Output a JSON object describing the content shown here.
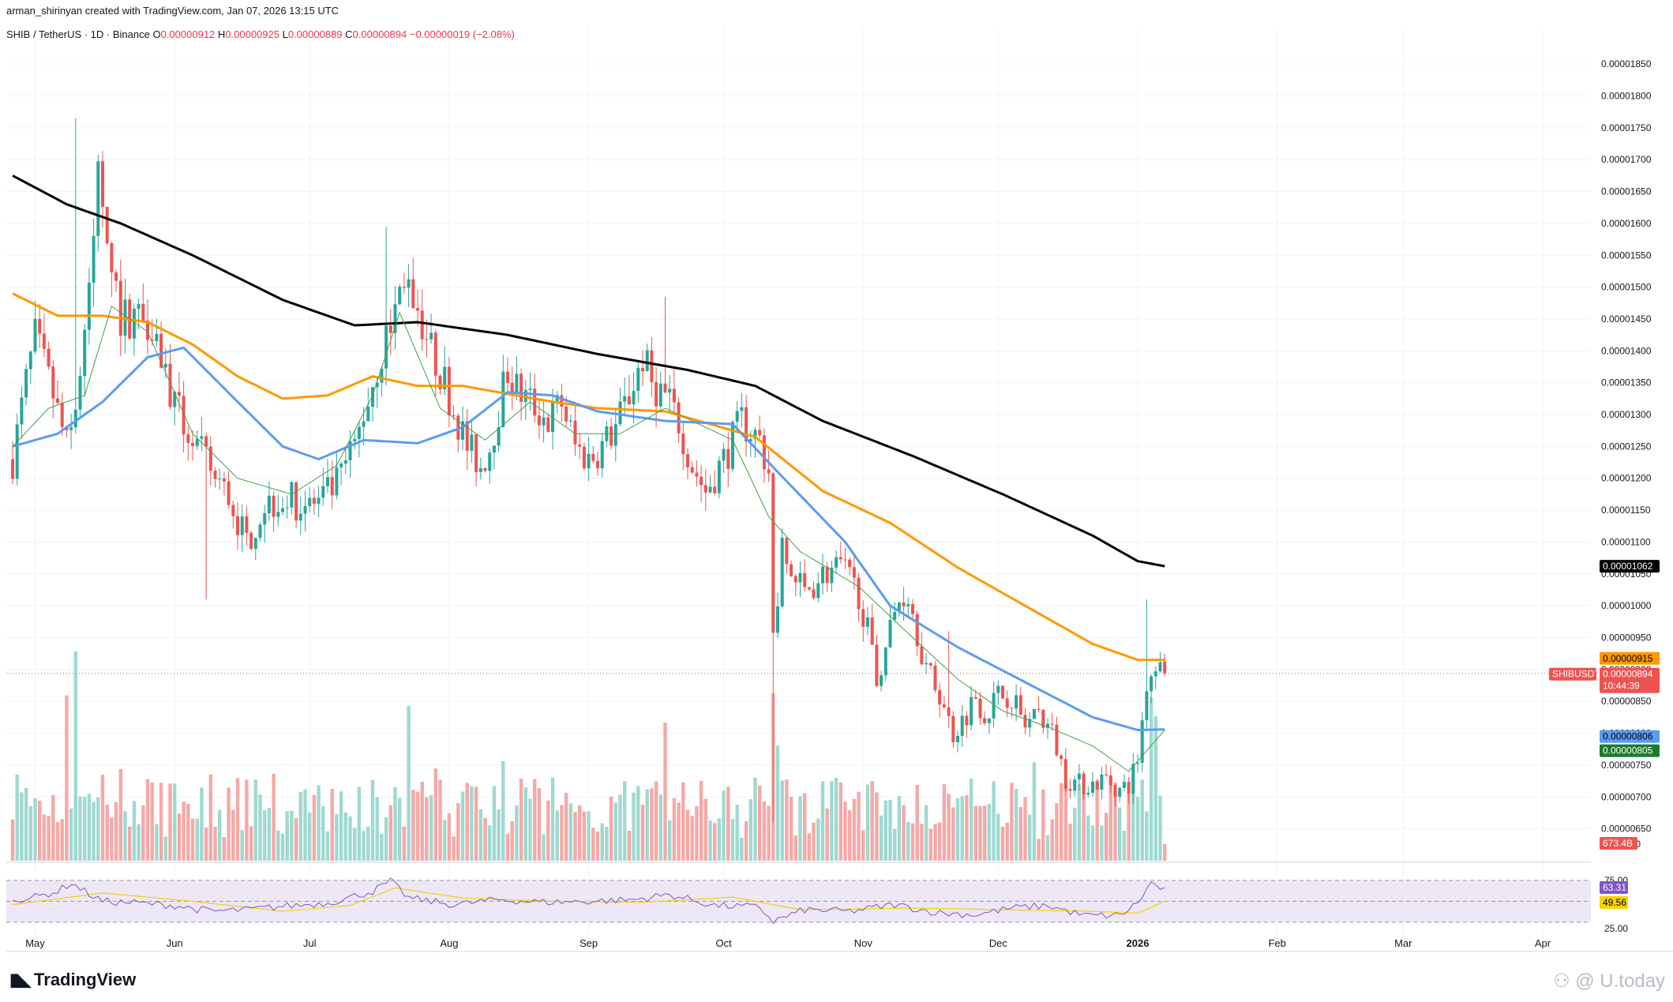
{
  "header": {
    "author_line": "arman_shirinyan created with TradingView.com, Jan 07, 2026 13:15 UTC",
    "symbol": "SHIB / TetherUS · 1D · Binance",
    "ohlc": {
      "o_label": "O",
      "o": "0.00000912",
      "h_label": "H",
      "h": "0.00000925",
      "l_label": "L",
      "l": "0.00000889",
      "c_label": "C",
      "c": "0.00000894",
      "change": "−0.00000019 (−2.08%)"
    }
  },
  "branding": {
    "logo_icon": "tradingview-logo-icon",
    "name": "TradingView",
    "watermark": "U.today"
  },
  "colors": {
    "up": "#26a69a",
    "down": "#ef5350",
    "vol_up": "#9fd9d1",
    "vol_down": "#f6a8a6",
    "ma_black": "#000000",
    "ma_orange": "#ff9800",
    "ma_blue": "#5b9cf0",
    "ma_green": "#43a047",
    "rsi": "#7e57c2",
    "rsi_ma": "#f5d300",
    "rsi_band": "#ede7f6"
  },
  "chart_data": {
    "type": "candlestick",
    "interval": "1D",
    "y_axis": {
      "min": 6e-06,
      "max": 1.87e-05,
      "ticks": [
        "0.00001850",
        "0.00001800",
        "0.00001750",
        "0.00001700",
        "0.00001650",
        "0.00001600",
        "0.00001550",
        "0.00001500",
        "0.00001450",
        "0.00001400",
        "0.00001350",
        "0.00001300",
        "0.00001250",
        "0.00001200",
        "0.00001150",
        "0.00001100",
        "0.00001050",
        "0.00001000",
        "0.00000950",
        "0.00000900",
        "0.00000850",
        "0.00000800",
        "0.00000750",
        "0.00000700",
        "0.00000650",
        "0.00000600"
      ]
    },
    "x_axis": {
      "labels": [
        {
          "label": "May",
          "bar": 5
        },
        {
          "label": "Jun",
          "bar": 36
        },
        {
          "label": "Jul",
          "bar": 66
        },
        {
          "label": "Aug",
          "bar": 97
        },
        {
          "label": "Sep",
          "bar": 128
        },
        {
          "label": "Oct",
          "bar": 158
        },
        {
          "label": "Nov",
          "bar": 189
        },
        {
          "label": "Dec",
          "bar": 219
        },
        {
          "label": "2026",
          "bar": 250
        },
        {
          "label": "Feb",
          "bar": 281
        },
        {
          "label": "Mar",
          "bar": 309
        },
        {
          "label": "Apr",
          "bar": 340
        }
      ],
      "last_bar": 256,
      "total_slots": 370
    },
    "price_path": [
      [
        0,
        12.3
      ],
      [
        3,
        13.5
      ],
      [
        5,
        14.2
      ],
      [
        9,
        13.3
      ],
      [
        12,
        12.5
      ],
      [
        15,
        13.7
      ],
      [
        17,
        14.8
      ],
      [
        19,
        16.8
      ],
      [
        21,
        16.0
      ],
      [
        24,
        14.5
      ],
      [
        28,
        14.6
      ],
      [
        31,
        14.5
      ],
      [
        36,
        13.1
      ],
      [
        40,
        12.6
      ],
      [
        45,
        12.0
      ],
      [
        48,
        11.7
      ],
      [
        52,
        11.0
      ],
      [
        56,
        11.6
      ],
      [
        60,
        11.7
      ],
      [
        64,
        11.6
      ],
      [
        68,
        11.6
      ],
      [
        72,
        11.9
      ],
      [
        76,
        12.5
      ],
      [
        80,
        13.5
      ],
      [
        84,
        14.4
      ],
      [
        87,
        15.2
      ],
      [
        90,
        14.7
      ],
      [
        93,
        14.0
      ],
      [
        95,
        13.7
      ],
      [
        98,
        13.1
      ],
      [
        101,
        12.5
      ],
      [
        104,
        12.2
      ],
      [
        106,
        12.5
      ],
      [
        108,
        13.1
      ],
      [
        110,
        13.7
      ],
      [
        112,
        13.4
      ],
      [
        115,
        13.2
      ],
      [
        119,
        12.9
      ],
      [
        122,
        13.2
      ],
      [
        125,
        12.5
      ],
      [
        128,
        12.3
      ],
      [
        131,
        12.5
      ],
      [
        134,
        12.8
      ],
      [
        137,
        13.3
      ],
      [
        140,
        13.9
      ],
      [
        142,
        13.5
      ],
      [
        145,
        13.3
      ],
      [
        148,
        12.9
      ],
      [
        151,
        12.2
      ],
      [
        154,
        11.8
      ],
      [
        158,
        12.3
      ],
      [
        162,
        12.9
      ],
      [
        166,
        12.6
      ],
      [
        168,
        12.1
      ],
      [
        169,
        9.5
      ],
      [
        171,
        10.8
      ],
      [
        173,
        10.5
      ],
      [
        176,
        10.2
      ],
      [
        180,
        10.5
      ],
      [
        184,
        10.6
      ],
      [
        188,
        10.2
      ],
      [
        190,
        9.6
      ],
      [
        192,
        8.8
      ],
      [
        194,
        9.4
      ],
      [
        197,
        10.1
      ],
      [
        199,
        10.2
      ],
      [
        201,
        9.6
      ],
      [
        203,
        9.0
      ],
      [
        206,
        8.6
      ],
      [
        209,
        8.0
      ],
      [
        211,
        8.2
      ],
      [
        214,
        8.6
      ],
      [
        216,
        8.3
      ],
      [
        219,
        8.6
      ],
      [
        222,
        8.6
      ],
      [
        225,
        8.1
      ],
      [
        228,
        8.3
      ],
      [
        231,
        8.0
      ],
      [
        234,
        7.3
      ],
      [
        237,
        7.2
      ],
      [
        240,
        7.2
      ],
      [
        243,
        7.3
      ],
      [
        246,
        7.1
      ],
      [
        248,
        7.2
      ],
      [
        250,
        7.6
      ],
      [
        252,
        8.8
      ],
      [
        254,
        9.1
      ],
      [
        256,
        8.94
      ]
    ],
    "spikes": [
      {
        "bar": 14,
        "high": 17.65
      },
      {
        "bar": 43,
        "low": 10.1
      },
      {
        "bar": 83,
        "high": 15.95
      },
      {
        "bar": 145,
        "high": 14.85
      },
      {
        "bar": 169,
        "low": 6.6
      },
      {
        "bar": 208,
        "high": 9.6
      },
      {
        "bar": 252,
        "high": 10.1
      },
      {
        "bar": 21,
        "high": 16.0
      }
    ],
    "moving_averages": [
      {
        "color_key": "ma_black",
        "value": "0.00001062",
        "path": [
          [
            0,
            16.75
          ],
          [
            12,
            16.3
          ],
          [
            24,
            16.0
          ],
          [
            40,
            15.5
          ],
          [
            60,
            14.8
          ],
          [
            76,
            14.4
          ],
          [
            90,
            14.45
          ],
          [
            110,
            14.25
          ],
          [
            130,
            13.95
          ],
          [
            150,
            13.7
          ],
          [
            165,
            13.45
          ],
          [
            180,
            12.9
          ],
          [
            200,
            12.35
          ],
          [
            220,
            11.75
          ],
          [
            240,
            11.1
          ],
          [
            250,
            10.7
          ],
          [
            256,
            10.62
          ]
        ]
      },
      {
        "color_key": "ma_orange",
        "value": "0.00000915",
        "path": [
          [
            0,
            14.9
          ],
          [
            10,
            14.55
          ],
          [
            20,
            14.55
          ],
          [
            30,
            14.45
          ],
          [
            40,
            14.1
          ],
          [
            50,
            13.6
          ],
          [
            60,
            13.25
          ],
          [
            70,
            13.3
          ],
          [
            80,
            13.6
          ],
          [
            90,
            13.45
          ],
          [
            100,
            13.45
          ],
          [
            120,
            13.2
          ],
          [
            130,
            13.1
          ],
          [
            145,
            13.05
          ],
          [
            165,
            12.65
          ],
          [
            180,
            11.8
          ],
          [
            195,
            11.3
          ],
          [
            210,
            10.6
          ],
          [
            225,
            10.0
          ],
          [
            240,
            9.4
          ],
          [
            250,
            9.15
          ],
          [
            256,
            9.15
          ]
        ]
      },
      {
        "color_key": "ma_blue",
        "value": "0.00000806",
        "path": [
          [
            0,
            12.5
          ],
          [
            10,
            12.7
          ],
          [
            20,
            13.2
          ],
          [
            30,
            13.9
          ],
          [
            38,
            14.05
          ],
          [
            50,
            13.2
          ],
          [
            60,
            12.5
          ],
          [
            68,
            12.3
          ],
          [
            78,
            12.6
          ],
          [
            90,
            12.55
          ],
          [
            100,
            12.8
          ],
          [
            110,
            13.35
          ],
          [
            120,
            13.3
          ],
          [
            130,
            13.05
          ],
          [
            145,
            12.9
          ],
          [
            160,
            12.85
          ],
          [
            170,
            12.1
          ],
          [
            185,
            11.0
          ],
          [
            195,
            10.0
          ],
          [
            210,
            9.35
          ],
          [
            225,
            8.8
          ],
          [
            240,
            8.25
          ],
          [
            250,
            8.05
          ],
          [
            256,
            8.06
          ]
        ]
      },
      {
        "color_key": "ma_green",
        "value": "0.00000805",
        "path": [
          [
            0,
            12.5
          ],
          [
            8,
            13.1
          ],
          [
            16,
            13.3
          ],
          [
            22,
            14.7
          ],
          [
            30,
            14.3
          ],
          [
            40,
            12.7
          ],
          [
            50,
            12.0
          ],
          [
            62,
            11.75
          ],
          [
            72,
            12.2
          ],
          [
            80,
            13.3
          ],
          [
            86,
            14.6
          ],
          [
            95,
            13.1
          ],
          [
            105,
            12.6
          ],
          [
            115,
            13.2
          ],
          [
            125,
            12.7
          ],
          [
            135,
            12.7
          ],
          [
            145,
            13.1
          ],
          [
            160,
            12.6
          ],
          [
            168,
            11.4
          ],
          [
            175,
            10.85
          ],
          [
            188,
            10.3
          ],
          [
            200,
            9.5
          ],
          [
            210,
            8.85
          ],
          [
            220,
            8.35
          ],
          [
            230,
            8.1
          ],
          [
            240,
            7.8
          ],
          [
            248,
            7.4
          ],
          [
            256,
            8.05
          ]
        ]
      }
    ],
    "price_tags": [
      {
        "value": "0.00000915",
        "color_key": "ma_orange",
        "text_color": "#000000"
      },
      {
        "value": "0.00000894",
        "color_key": "down",
        "symbol": "SHIBUSDT",
        "timer": "10:44:39"
      },
      {
        "value": "0.00000806",
        "color_key": "ma_blue",
        "text_color": "#000000"
      },
      {
        "value": "0.00000805",
        "color_key": "ma_green",
        "text_color": "#ffffff"
      }
    ],
    "current_price": 8.94,
    "volume": {
      "last_label": "673.4B",
      "axis_label": "500",
      "spikes": [
        {
          "bar": 14,
          "v": 1.0
        },
        {
          "bar": 12,
          "v": 0.79
        },
        {
          "bar": 169,
          "v": 0.8
        },
        {
          "bar": 170,
          "v": 0.55
        },
        {
          "bar": 88,
          "v": 0.74
        },
        {
          "bar": 145,
          "v": 0.66
        },
        {
          "bar": 227,
          "v": 0.47
        },
        {
          "bar": 253,
          "v": 0.78
        },
        {
          "bar": 254,
          "v": 0.69
        }
      ]
    },
    "rsi": {
      "upper": "75.00",
      "lower": "25.00",
      "value": "63.31",
      "ma_value": "49.56",
      "upper_num": 75,
      "lower_num": 25,
      "path": [
        [
          0,
          52
        ],
        [
          5,
          55
        ],
        [
          10,
          62
        ],
        [
          13,
          72
        ],
        [
          15,
          65
        ],
        [
          20,
          50
        ],
        [
          28,
          48
        ],
        [
          36,
          45
        ],
        [
          44,
          38
        ],
        [
          52,
          40
        ],
        [
          60,
          44
        ],
        [
          70,
          48
        ],
        [
          80,
          62
        ],
        [
          84,
          74
        ],
        [
          88,
          54
        ],
        [
          98,
          46
        ],
        [
          108,
          52
        ],
        [
          118,
          49
        ],
        [
          128,
          50
        ],
        [
          138,
          52
        ],
        [
          146,
          58
        ],
        [
          156,
          45
        ],
        [
          166,
          43
        ],
        [
          169,
          26
        ],
        [
          176,
          40
        ],
        [
          186,
          38
        ],
        [
          196,
          46
        ],
        [
          206,
          36
        ],
        [
          214,
          34
        ],
        [
          222,
          42
        ],
        [
          230,
          45
        ],
        [
          238,
          33
        ],
        [
          246,
          33
        ],
        [
          250,
          48
        ],
        [
          253,
          72
        ],
        [
          256,
          63
        ]
      ],
      "ma_path": [
        [
          0,
          46
        ],
        [
          20,
          60
        ],
        [
          40,
          50
        ],
        [
          60,
          38
        ],
        [
          75,
          45
        ],
        [
          85,
          66
        ],
        [
          100,
          54
        ],
        [
          120,
          50
        ],
        [
          140,
          49
        ],
        [
          160,
          55
        ],
        [
          175,
          40
        ],
        [
          200,
          42
        ],
        [
          220,
          40
        ],
        [
          240,
          38
        ],
        [
          250,
          36
        ],
        [
          256,
          50
        ]
      ]
    }
  }
}
